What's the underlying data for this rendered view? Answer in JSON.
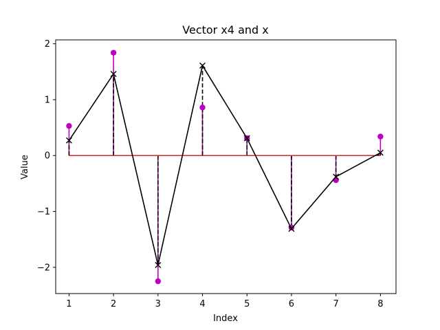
{
  "chart_data": {
    "type": "line",
    "title": "Vector x4 and x",
    "xlabel": "Index",
    "ylabel": "Value",
    "xlim": [
      0.7,
      8.35
    ],
    "ylim": [
      -2.47,
      2.07
    ],
    "x": [
      1,
      2,
      3,
      4,
      5,
      6,
      7,
      8
    ],
    "x_ticks": [
      1,
      2,
      3,
      4,
      5,
      6,
      7,
      8
    ],
    "y_ticks": [
      -2,
      -1,
      0,
      1,
      2
    ],
    "baseline": 0,
    "series": [
      {
        "style": "stem-solid-circle",
        "color": "#bf00bf",
        "values": [
          0.53,
          1.84,
          -2.25,
          0.86,
          0.31,
          -1.29,
          -0.44,
          0.34
        ]
      },
      {
        "style": "stem-dashed-x-line",
        "color": "#000000",
        "values": [
          0.27,
          1.46,
          -1.96,
          1.61,
          0.31,
          -1.31,
          -0.38,
          0.05
        ]
      }
    ],
    "baseline_color": "#d62728",
    "grid": false,
    "legend": "none"
  }
}
